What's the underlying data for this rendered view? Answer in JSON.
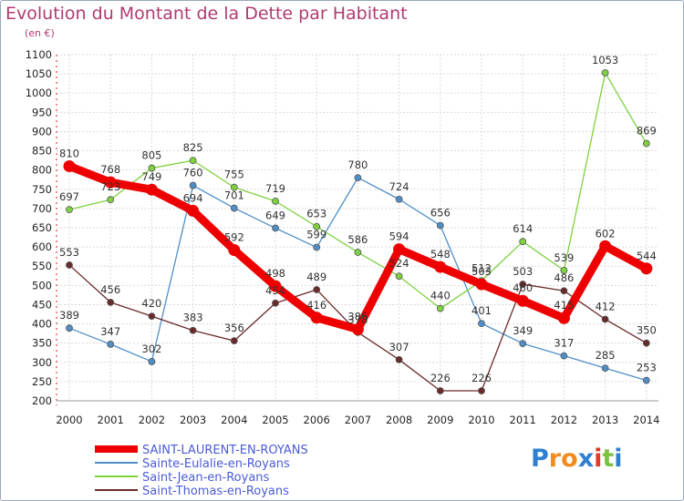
{
  "chart_data": {
    "type": "line",
    "title": "Evolution du Montant de la Dette par Habitant",
    "subtitle": "(en €)",
    "xlabel": "",
    "ylabel": "",
    "ylim": [
      200,
      1100
    ],
    "yticks": [
      200,
      250,
      300,
      350,
      400,
      450,
      500,
      550,
      600,
      650,
      700,
      750,
      800,
      850,
      900,
      950,
      1000,
      1050,
      1100
    ],
    "categories": [
      "2000",
      "2001",
      "2002",
      "2003",
      "2004",
      "2005",
      "2006",
      "2007",
      "2008",
      "2009",
      "2010",
      "2011",
      "2012",
      "2013",
      "2014"
    ],
    "grid": true,
    "legend_position": "bottom-left",
    "series": [
      {
        "name": "SAINT-LAURENT-EN-ROYANS",
        "color": "#ee0000",
        "values": [
          810,
          768,
          749,
          694,
          592,
          498,
          416,
          386,
          594,
          548,
          503,
          460,
          415,
          602,
          544
        ]
      },
      {
        "name": "Sainte-Eulalie-en-Royans",
        "color": "#4f8fc8",
        "values": [
          389,
          347,
          302,
          760,
          701,
          649,
          599,
          780,
          724,
          656,
          401,
          349,
          317,
          285,
          253
        ]
      },
      {
        "name": "Saint-Jean-en-Royans",
        "color": "#7ed23e",
        "values": [
          697,
          723,
          805,
          825,
          755,
          719,
          653,
          586,
          524,
          440,
          512,
          614,
          539,
          1053,
          869
        ]
      },
      {
        "name": "Saint-Thomas-en-Royans",
        "color": "#6a2a2a",
        "values": [
          553,
          456,
          420,
          383,
          356,
          454,
          489,
          378,
          307,
          226,
          226,
          503,
          486,
          412,
          350
        ]
      }
    ]
  },
  "logo": {
    "letters": [
      "P",
      "r",
      "o",
      "x",
      "i",
      "t",
      "i"
    ],
    "colors": [
      "#2f80d0",
      "#f08c1e",
      "#f08c1e",
      "#2f80d0",
      "#e23b2a",
      "#7cc242",
      "#2f80d0"
    ]
  }
}
